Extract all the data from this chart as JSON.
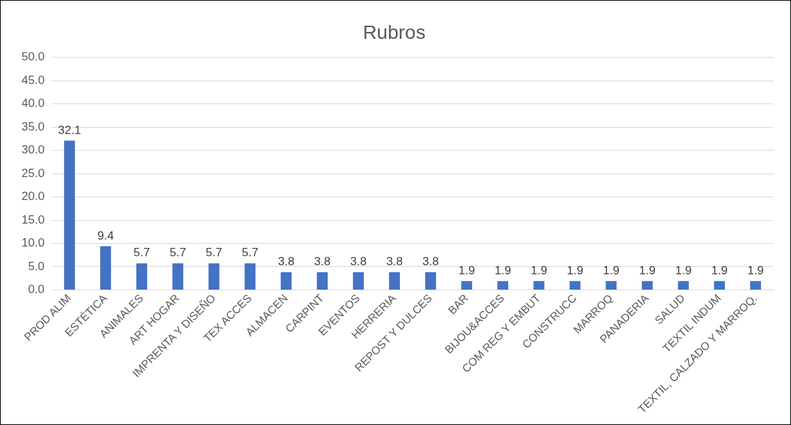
{
  "chart_data": {
    "type": "bar",
    "title": "Rubros",
    "categories": [
      "PROD ALIM",
      "ESTÉTICA",
      "ANIMALES",
      "ART HOGAR",
      "IMPRENTA Y DISEÑO",
      "TEX ACCES",
      "ALMACEN",
      "CARPINT",
      "EVENTOS",
      "HERRERIA",
      "REPOST Y DULCES",
      "BAR",
      "BIJOU&ACCES",
      "COM REG Y EMBUT",
      "CONSTRUCC",
      "MARROQ",
      "PANADERIA",
      "SALUD",
      "TEXTIL INDUM",
      "TEXTIL, CALZADO Y MARROQ."
    ],
    "values": [
      32.1,
      9.4,
      5.7,
      5.7,
      5.7,
      5.7,
      3.8,
      3.8,
      3.8,
      3.8,
      3.8,
      1.9,
      1.9,
      1.9,
      1.9,
      1.9,
      1.9,
      1.9,
      1.9,
      1.9
    ],
    "color": "#4472c4",
    "ylim": [
      0,
      50
    ],
    "yticks": [
      {
        "value": 0,
        "label": "0.0"
      },
      {
        "value": 5,
        "label": "5.0"
      },
      {
        "value": 10,
        "label": "10.0"
      },
      {
        "value": 15,
        "label": "15.0"
      },
      {
        "value": 20,
        "label": "20.0"
      },
      {
        "value": 25,
        "label": "25.0"
      },
      {
        "value": 30,
        "label": "30.0"
      },
      {
        "value": 35,
        "label": "35.0"
      },
      {
        "value": 40,
        "label": "40.0"
      },
      {
        "value": 45,
        "label": "45.0"
      },
      {
        "value": 50,
        "label": "50.0"
      }
    ],
    "grid": "y",
    "legend": false,
    "data_labels": true
  }
}
